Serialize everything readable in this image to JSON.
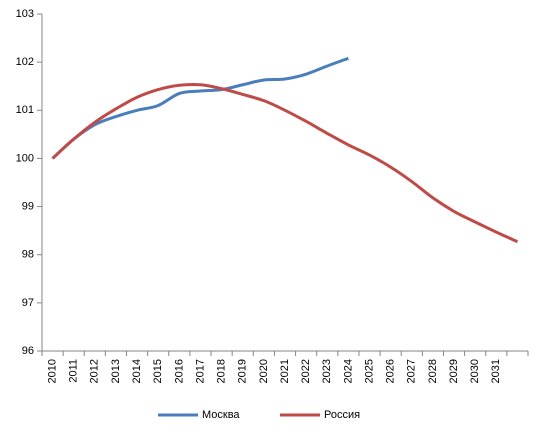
{
  "chart_data": {
    "type": "line",
    "categories": [
      "2010",
      "2011",
      "2012",
      "2013",
      "2014",
      "2015",
      "2016",
      "2017",
      "2018",
      "2019",
      "2020",
      "2021",
      "2022",
      "2023",
      "2024",
      "2025",
      "2026",
      "2027",
      "2028",
      "2029",
      "2030",
      "2031",
      null
    ],
    "series": [
      {
        "name": "Москва",
        "color": "#4a7ebb",
        "values": [
          100,
          100.4,
          100.7,
          100.87,
          101.0,
          101.1,
          101.35,
          101.4,
          101.43,
          101.53,
          101.63,
          101.65,
          101.75,
          101.92,
          102.08,
          null,
          null,
          null,
          null,
          null,
          null,
          null,
          null
        ]
      },
      {
        "name": "Россия",
        "color": "#be4b48",
        "values": [
          100,
          100.4,
          100.75,
          101.03,
          101.27,
          101.43,
          101.52,
          101.53,
          101.45,
          101.33,
          101.2,
          101.0,
          100.77,
          100.52,
          100.28,
          100.07,
          99.82,
          99.52,
          99.18,
          98.9,
          98.68,
          98.47,
          98.27
        ]
      }
    ],
    "ylim": [
      96,
      103
    ],
    "yticks": [
      96,
      97,
      98,
      99,
      100,
      101,
      102,
      103
    ],
    "grid": false,
    "legend": "bottom"
  }
}
